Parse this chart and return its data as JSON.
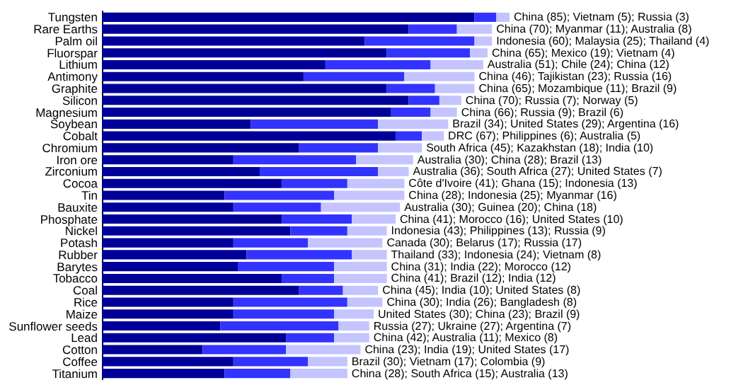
{
  "chart_data": {
    "type": "bar",
    "orientation": "horizontal",
    "stacked": true,
    "tick_labels": "y",
    "categories": [
      "Tungsten",
      "Rare Earths",
      "Palm oil",
      "Fluorspar",
      "Lithium",
      "Antimony",
      "Graphite",
      "Silicon",
      "Magnesium",
      "Soybean",
      "Cobalt",
      "Chromium",
      "Iron ore",
      "Zirconium",
      "Cocoa",
      "Tin",
      "Bauxite",
      "Phosphate",
      "Nickel",
      "Potash",
      "Rubber",
      "Barytes",
      "Tobacco",
      "Coal",
      "Rice",
      "Maize",
      "Sunflower seeds",
      "Lead",
      "Cotton",
      "Coffee",
      "Titanium"
    ],
    "series": [
      {
        "color": "#000099",
        "values": [
          85,
          70,
          60,
          65,
          51,
          46,
          65,
          70,
          66,
          34,
          67,
          45,
          30,
          36,
          41,
          28,
          30,
          41,
          43,
          30,
          33,
          31,
          41,
          45,
          30,
          30,
          27,
          42,
          23,
          30,
          28
        ]
      },
      {
        "color": "#3333ff",
        "values": [
          5,
          11,
          25,
          19,
          24,
          23,
          11,
          7,
          9,
          29,
          6,
          18,
          28,
          27,
          15,
          25,
          20,
          16,
          13,
          17,
          24,
          22,
          12,
          10,
          26,
          23,
          27,
          11,
          19,
          17,
          15
        ]
      },
      {
        "color": "#c4c4ff",
        "values": [
          3,
          8,
          4,
          4,
          12,
          16,
          9,
          5,
          6,
          16,
          5,
          10,
          13,
          7,
          13,
          16,
          18,
          10,
          9,
          17,
          8,
          12,
          12,
          8,
          8,
          9,
          7,
          8,
          17,
          9,
          13
        ],
        "value_labels": [
          "China (85); Vietnam (5); Russia (3)",
          "China (70); Myanmar (11); Australia (8)",
          "Indonesia (60); Malaysia (25); Thailand (4)",
          "China (65); Mexico (19); Vietnam (4)",
          "Australia (51); Chile (24); China (12)",
          "China (46); Tajikistan (23); Russia (16)",
          "China (65); Mozambique (11); Brazil (9)",
          "China (70); Russia (7); Norway (5)",
          "China (66); Russia (9); Brazil (6)",
          "Brazil (34); United States (29); Argentina (16)",
          "DRC (67); Philippines (6); Australia (5)",
          "South Africa (45); Kazakhstan (18); India (10)",
          "Australia (30); China (28); Brazil (13)",
          "Australia (36); South Africa (27); United States (7)",
          "Côte d'Ivoire (41); Ghana (15); Indonesia (13)",
          "China (28); Indonesia (25); Myanmar (16)",
          "Australia (30); Guinea (20); China (18)",
          "China (41); Morocco (16); United States (10)",
          "Indonesia (43); Philippines (13); Russia (9)",
          "Canada (30); Belarus (17); Russia (17)",
          "Thailand (33); Indonesia (24); Vietnam (8)",
          "China (31); India (22); Morocco (12)",
          "China (41); Brazil (12); India (12)",
          "China (45); India (10); United States (8)",
          "China (30); India (26); Bangladesh (8)",
          "United States (30); China (23); Brazil (9)",
          "Russia (27); Ukraine (27); Argentina (7)",
          "China (42); Australia (11); Mexico (8)",
          "China (23); India (19); United States (17)",
          "Brazil (30); Vietnam (17); Colombia (9)",
          "China (28); South Africa (15); Australia (13)"
        ]
      }
    ]
  }
}
